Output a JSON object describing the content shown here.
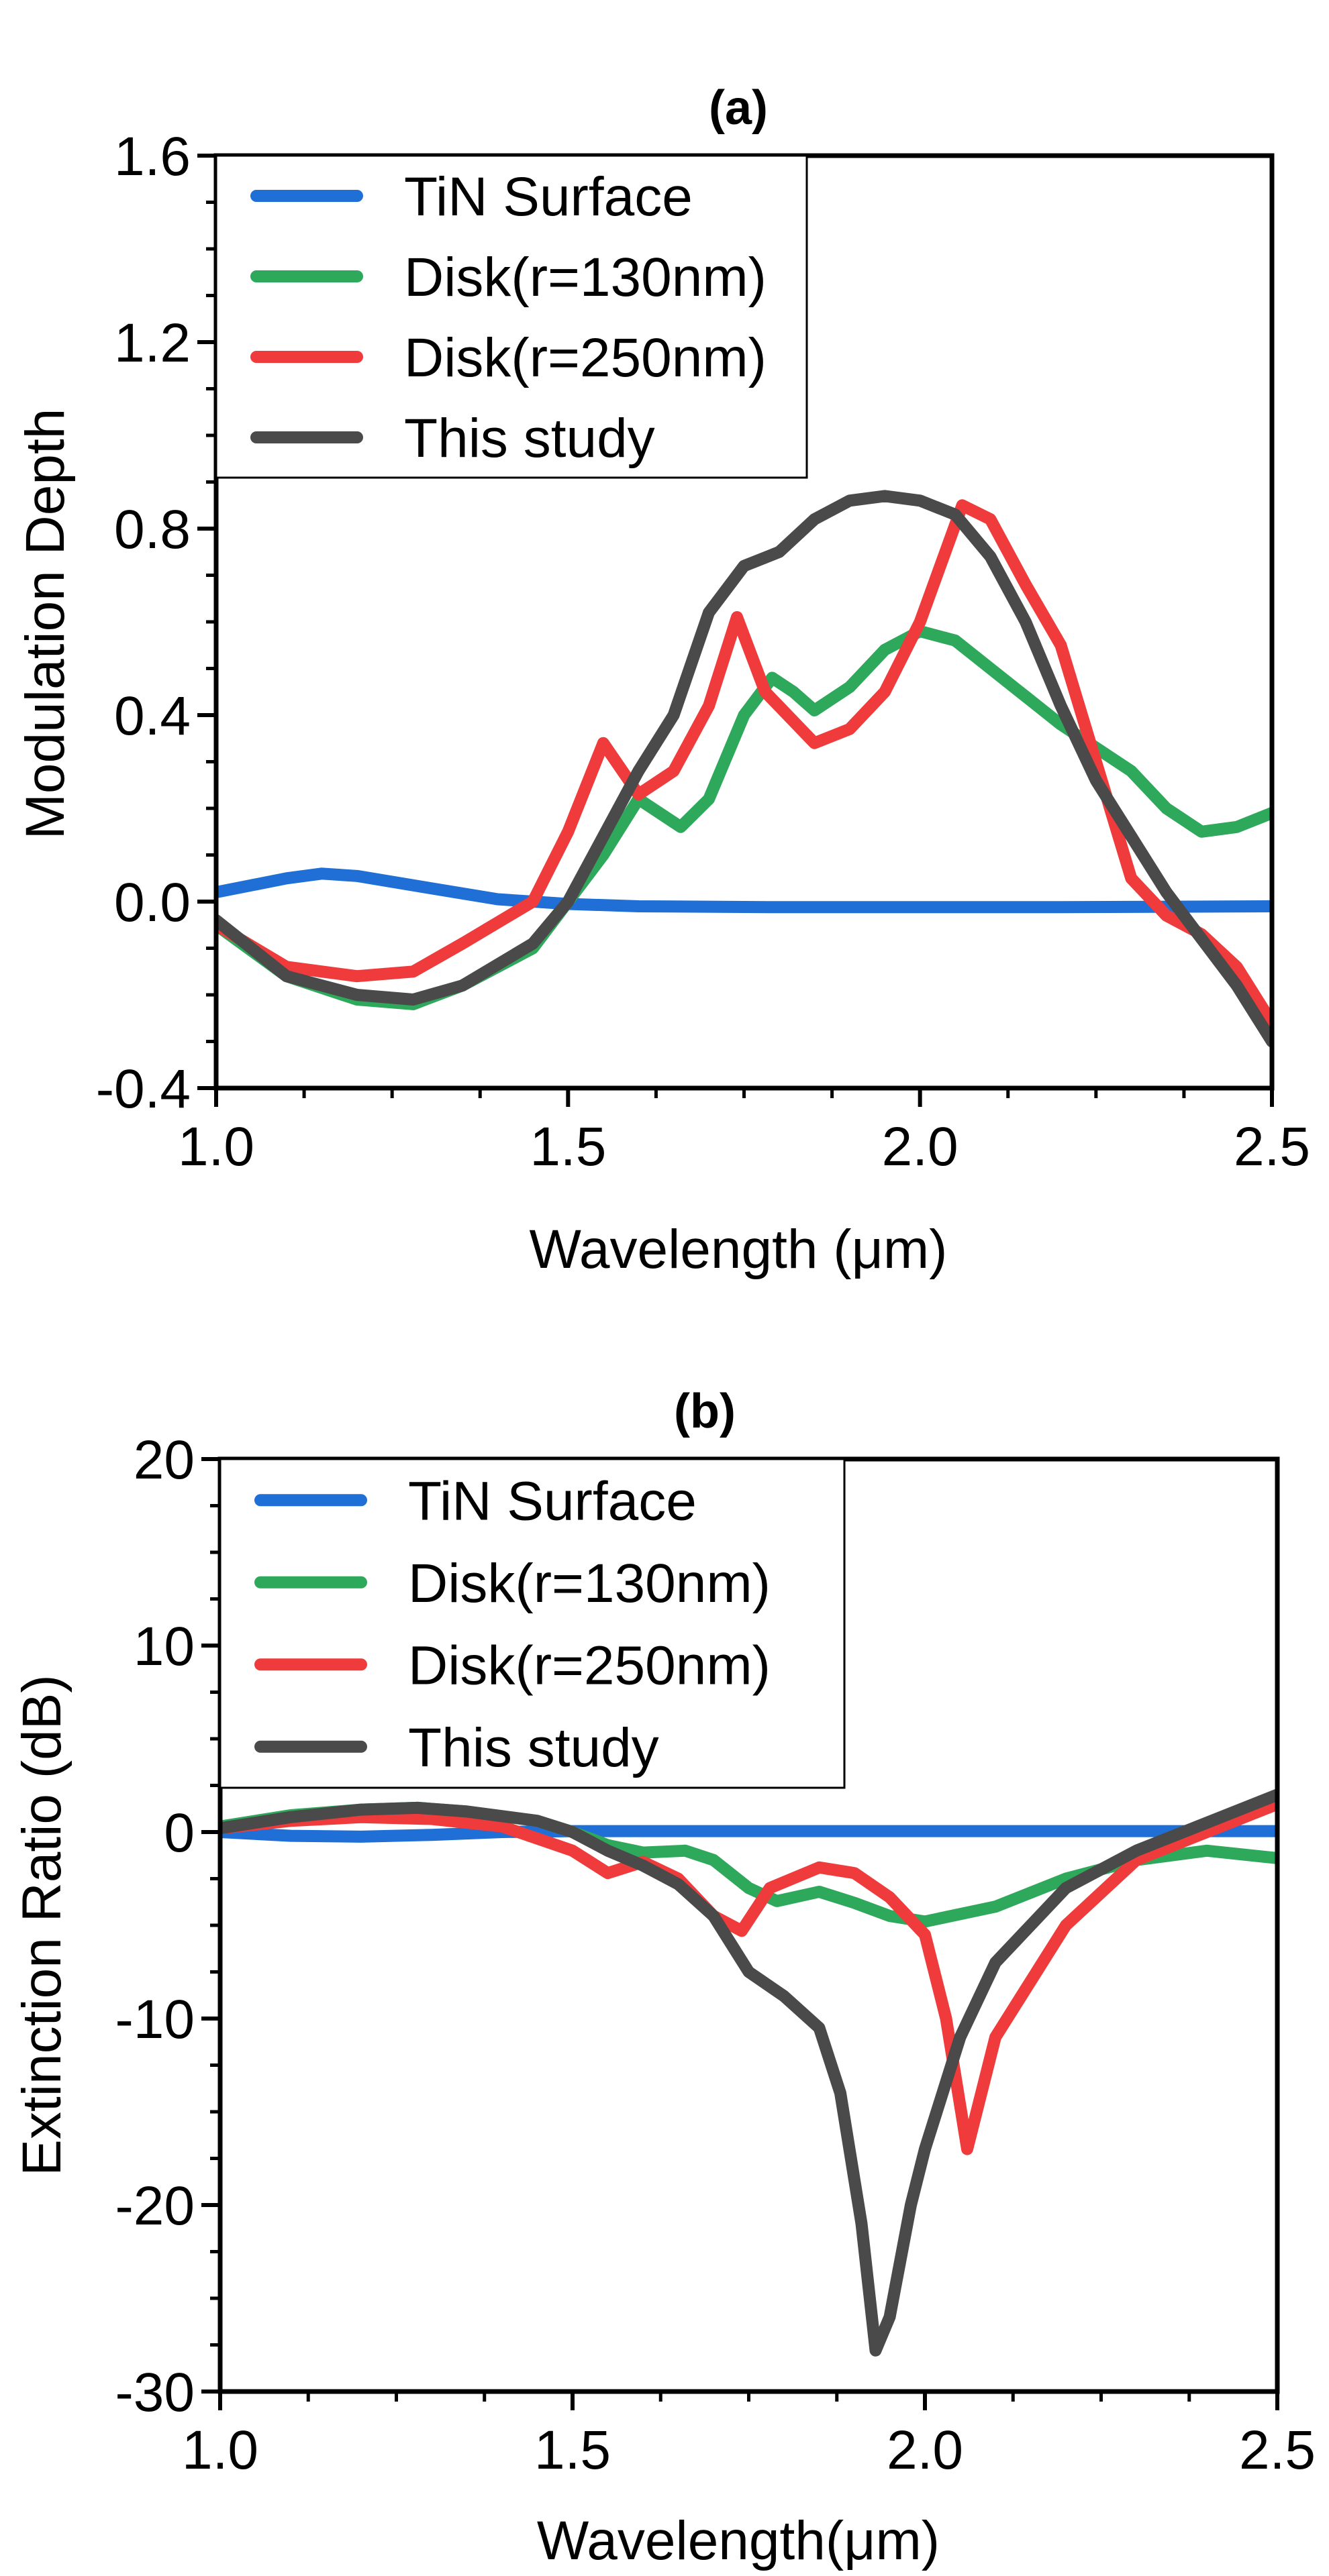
{
  "chart_data": [
    {
      "type": "line",
      "title": "(a)",
      "xlabel": "Wavelength (μm)",
      "ylabel": "Modulation Depth",
      "xlim": [
        1.0,
        2.5
      ],
      "ylim": [
        -0.4,
        1.6
      ],
      "xticks": [
        1.0,
        1.5,
        2.0,
        2.5
      ],
      "xtick_labels": [
        "1.0",
        "1.5",
        "2.0",
        "2.5"
      ],
      "yticks": [
        -0.4,
        0.0,
        0.4,
        0.8,
        1.2,
        1.6
      ],
      "ytick_labels": [
        "-0.4",
        "0.0",
        "0.4",
        "0.8",
        "1.2",
        "1.6"
      ],
      "grid": false,
      "legend_position": "top-left",
      "series": [
        {
          "name": "TiN Surface",
          "color": "#1f6fd6",
          "x": [
            1.0,
            1.1,
            1.15,
            1.2,
            1.3,
            1.4,
            1.5,
            1.6,
            1.8,
            2.0,
            2.2,
            2.5
          ],
          "y": [
            0.02,
            0.05,
            0.06,
            0.055,
            0.03,
            0.005,
            -0.005,
            -0.01,
            -0.012,
            -0.012,
            -0.012,
            -0.01
          ]
        },
        {
          "name": "Disk(r=130nm)",
          "color": "#2ea85a",
          "x": [
            1.0,
            1.1,
            1.2,
            1.28,
            1.35,
            1.45,
            1.5,
            1.55,
            1.6,
            1.66,
            1.7,
            1.75,
            1.79,
            1.82,
            1.85,
            1.9,
            1.95,
            2.0,
            2.05,
            2.1,
            2.2,
            2.3,
            2.35,
            2.4,
            2.45,
            2.5
          ],
          "y": [
            -0.05,
            -0.16,
            -0.21,
            -0.22,
            -0.18,
            -0.1,
            0.0,
            0.1,
            0.22,
            0.16,
            0.22,
            0.4,
            0.48,
            0.45,
            0.41,
            0.46,
            0.54,
            0.58,
            0.56,
            0.5,
            0.38,
            0.28,
            0.2,
            0.15,
            0.16,
            0.19
          ]
        },
        {
          "name": "Disk(r=250nm)",
          "color": "#ef3b3b",
          "x": [
            1.0,
            1.1,
            1.2,
            1.28,
            1.35,
            1.45,
            1.5,
            1.55,
            1.6,
            1.65,
            1.7,
            1.74,
            1.78,
            1.85,
            1.9,
            1.95,
            2.0,
            2.06,
            2.1,
            2.15,
            2.2,
            2.3,
            2.35,
            2.4,
            2.45,
            2.5
          ],
          "y": [
            -0.05,
            -0.14,
            -0.16,
            -0.15,
            -0.09,
            0.0,
            0.15,
            0.34,
            0.23,
            0.28,
            0.42,
            0.61,
            0.45,
            0.34,
            0.37,
            0.45,
            0.6,
            0.85,
            0.82,
            0.68,
            0.55,
            0.05,
            -0.03,
            -0.07,
            -0.14,
            -0.26
          ]
        },
        {
          "name": "This study",
          "color": "#4a4a4a",
          "x": [
            1.0,
            1.1,
            1.2,
            1.28,
            1.35,
            1.45,
            1.5,
            1.55,
            1.6,
            1.65,
            1.7,
            1.75,
            1.8,
            1.85,
            1.9,
            1.95,
            2.0,
            2.05,
            2.1,
            2.15,
            2.2,
            2.25,
            2.3,
            2.35,
            2.4,
            2.45,
            2.5
          ],
          "y": [
            -0.04,
            -0.16,
            -0.2,
            -0.21,
            -0.18,
            -0.09,
            0.0,
            0.14,
            0.28,
            0.4,
            0.62,
            0.72,
            0.75,
            0.82,
            0.86,
            0.87,
            0.86,
            0.83,
            0.74,
            0.6,
            0.42,
            0.26,
            0.14,
            0.02,
            -0.08,
            -0.18,
            -0.3
          ]
        }
      ]
    },
    {
      "type": "line",
      "title": "(b)",
      "xlabel": "Wavelength(μm)",
      "ylabel": "Extinction Ratio (dB)",
      "xlim": [
        1.0,
        2.5
      ],
      "ylim": [
        -30,
        20
      ],
      "xticks": [
        1.0,
        1.5,
        2.0,
        2.5
      ],
      "xtick_labels": [
        "1.0",
        "1.5",
        "2.0",
        "2.5"
      ],
      "yticks": [
        -30,
        -20,
        -10,
        0,
        10,
        20
      ],
      "ytick_labels": [
        "-30",
        "-20",
        "-10",
        "0",
        "10",
        "20"
      ],
      "grid": false,
      "legend_position": "top-left",
      "series": [
        {
          "name": "TiN Surface",
          "color": "#1f6fd6",
          "x": [
            1.0,
            1.1,
            1.2,
            1.3,
            1.4,
            1.5,
            1.7,
            2.0,
            2.2,
            2.5
          ],
          "y": [
            0.0,
            -0.2,
            -0.25,
            -0.15,
            0.0,
            0.05,
            0.05,
            0.05,
            0.05,
            0.05
          ]
        },
        {
          "name": "Disk(r=130nm)",
          "color": "#2ea85a",
          "x": [
            1.0,
            1.1,
            1.2,
            1.28,
            1.35,
            1.45,
            1.5,
            1.55,
            1.6,
            1.66,
            1.7,
            1.75,
            1.79,
            1.85,
            1.9,
            1.95,
            2.0,
            2.1,
            2.2,
            2.3,
            2.4,
            2.5
          ],
          "y": [
            0.3,
            0.9,
            1.2,
            1.3,
            1.1,
            0.6,
            0.0,
            -0.7,
            -1.1,
            -1.0,
            -1.5,
            -3.0,
            -3.7,
            -3.2,
            -3.8,
            -4.5,
            -4.8,
            -4.0,
            -2.5,
            -1.5,
            -1.0,
            -1.4
          ]
        },
        {
          "name": "Disk(r=250nm)",
          "color": "#ef3b3b",
          "x": [
            1.0,
            1.1,
            1.2,
            1.3,
            1.4,
            1.5,
            1.55,
            1.6,
            1.65,
            1.7,
            1.74,
            1.78,
            1.85,
            1.9,
            1.95,
            2.0,
            2.03,
            2.06,
            2.1,
            2.15,
            2.2,
            2.3,
            2.4,
            2.5
          ],
          "y": [
            0.2,
            0.6,
            0.8,
            0.7,
            0.3,
            -1.0,
            -2.2,
            -1.6,
            -2.5,
            -4.5,
            -5.3,
            -3.0,
            -1.9,
            -2.2,
            -3.5,
            -5.5,
            -10.0,
            -17.0,
            -11.0,
            -8.0,
            -5.0,
            -1.5,
            0.0,
            1.5
          ]
        },
        {
          "name": "This study",
          "color": "#4a4a4a",
          "x": [
            1.0,
            1.1,
            1.2,
            1.28,
            1.35,
            1.45,
            1.5,
            1.55,
            1.6,
            1.65,
            1.7,
            1.75,
            1.8,
            1.85,
            1.88,
            1.91,
            1.93,
            1.95,
            1.98,
            2.0,
            2.05,
            2.1,
            2.2,
            2.3,
            2.4,
            2.5
          ],
          "y": [
            0.2,
            0.8,
            1.2,
            1.3,
            1.1,
            0.6,
            0.0,
            -1.0,
            -1.8,
            -2.8,
            -4.5,
            -7.5,
            -8.8,
            -10.5,
            -14.0,
            -21.0,
            -27.8,
            -26.0,
            -20.0,
            -17.0,
            -11.0,
            -7.0,
            -3.0,
            -1.0,
            0.5,
            2.0
          ]
        }
      ]
    }
  ]
}
